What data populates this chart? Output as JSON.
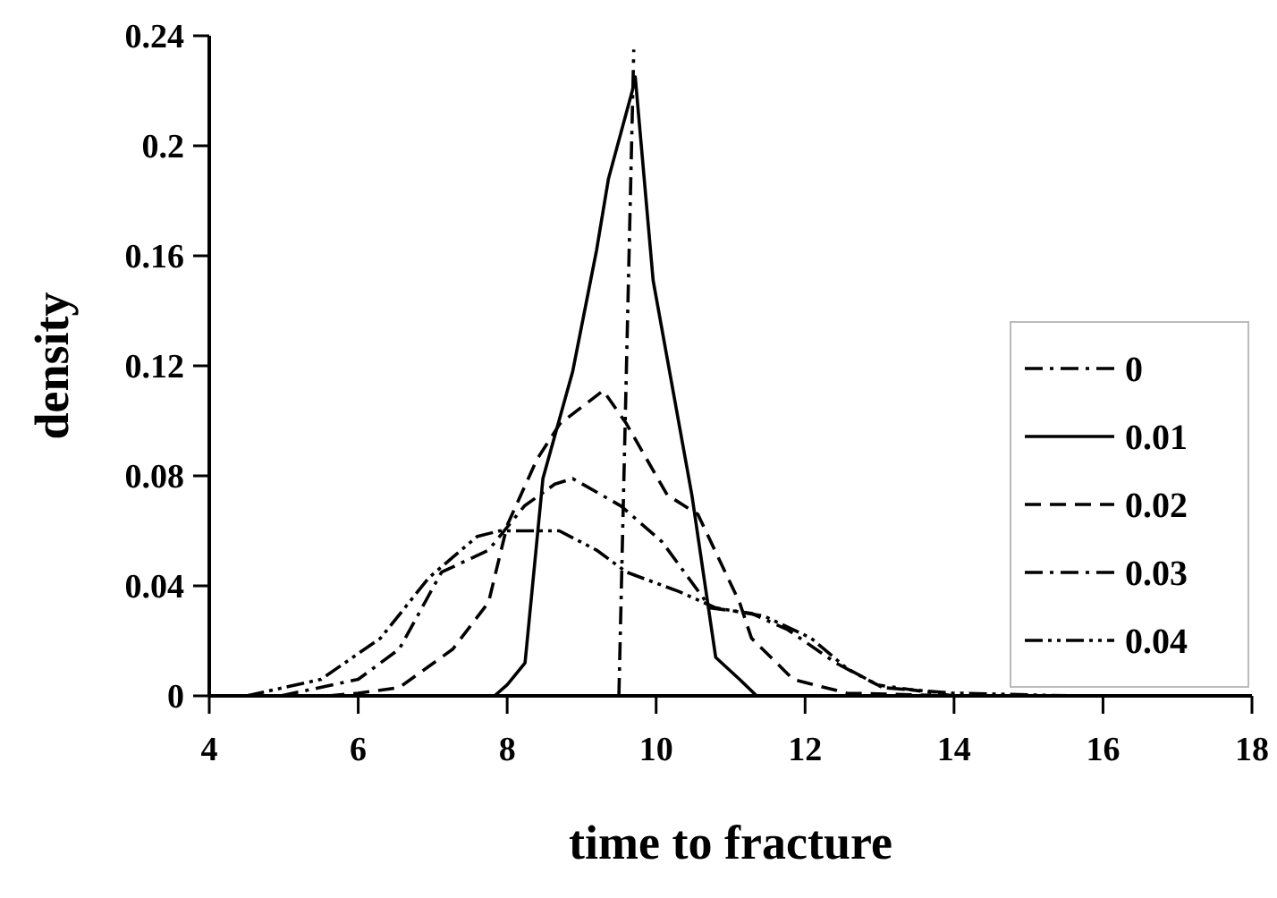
{
  "chart_data": {
    "type": "line",
    "xlabel": "time to fracture",
    "ylabel": "density",
    "xlim": [
      4,
      18
    ],
    "xticks": [
      4,
      6,
      8,
      10,
      12,
      14,
      16,
      18
    ],
    "ylim": [
      0,
      0.24
    ],
    "yticks": [
      0,
      0.04,
      0.08,
      0.12,
      0.16,
      0.2,
      0.24
    ],
    "legend": "right",
    "series": [
      {
        "name": "0",
        "color": "#000000",
        "line_style": "dashdot",
        "x": [
          9.5,
          9.7
        ],
        "values": [
          0,
          0.235
        ]
      },
      {
        "name": "0.01",
        "color": "#000000",
        "line_style": "solid",
        "x": [
          7.83,
          8.0,
          8.24,
          8.48,
          8.88,
          9.2,
          9.36,
          9.68,
          9.72,
          9.96,
          10.48,
          10.8,
          11.12,
          11.35
        ],
        "values": [
          0,
          0.004,
          0.012,
          0.079,
          0.118,
          0.162,
          0.188,
          0.22,
          0.225,
          0.151,
          0.073,
          0.014,
          0.006,
          0
        ]
      },
      {
        "name": "0.02",
        "color": "#000000",
        "line_style": "dashed",
        "x": [
          5.6,
          6.0,
          6.55,
          7.27,
          7.75,
          8.0,
          8.4,
          8.71,
          9.29,
          9.6,
          10.15,
          10.56,
          11.12,
          11.28,
          11.84,
          12.56,
          14,
          18
        ],
        "values": [
          0,
          0.001,
          0.003,
          0.017,
          0.034,
          0.062,
          0.086,
          0.099,
          0.111,
          0.099,
          0.073,
          0.066,
          0.034,
          0.021,
          0.006,
          0.001,
          0,
          0
        ]
      },
      {
        "name": "0.03",
        "color": "#000000",
        "line_style": "dashdot",
        "x": [
          4.96,
          6.0,
          6.55,
          7.12,
          7.75,
          8.23,
          8.64,
          8.88,
          9.53,
          10.08,
          10.73,
          11.28,
          11.77,
          12.41,
          12.97,
          14,
          18
        ],
        "values": [
          0,
          0.006,
          0.017,
          0.045,
          0.053,
          0.069,
          0.077,
          0.079,
          0.069,
          0.056,
          0.032,
          0.03,
          0.024,
          0.012,
          0.004,
          0,
          0
        ]
      },
      {
        "name": "0.04",
        "color": "#000000",
        "line_style": "dashdotdot",
        "x": [
          4.5,
          5.5,
          6.3,
          6.95,
          7.6,
          7.9,
          8.7,
          9.2,
          9.6,
          10.3,
          10.8,
          11.45,
          12.08,
          12.56,
          13.04,
          14,
          15.6,
          18
        ],
        "values": [
          0,
          0.006,
          0.021,
          0.043,
          0.058,
          0.06,
          0.06,
          0.053,
          0.045,
          0.038,
          0.032,
          0.029,
          0.021,
          0.01,
          0.003,
          0.001,
          0,
          0
        ]
      }
    ]
  }
}
